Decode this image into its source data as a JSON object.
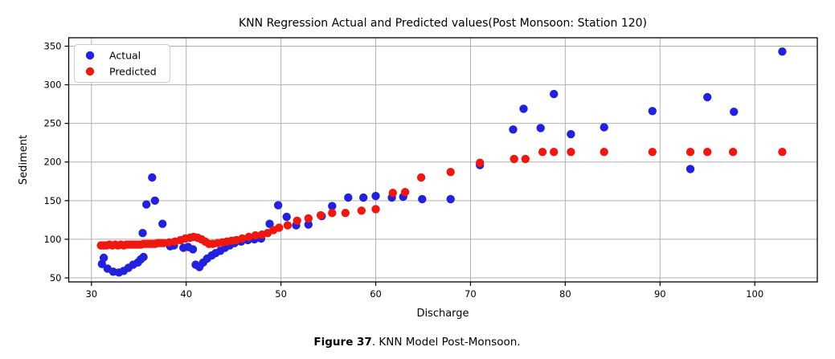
{
  "chart": {
    "title": "KNN Regression Actual and Predicted values(Post Monsoon: Station 120)",
    "xlabel": "Discharge",
    "ylabel": "Sediment"
  },
  "caption": {
    "bold": "Figure 37",
    "rest": ". KNN Model Post-Monsoon."
  },
  "colors": {
    "actual": "#2222dd",
    "predicted": "#ee1810",
    "grid": "#b0b0b0",
    "spine": "#000000",
    "legend_border": "#cccccc",
    "background": "#ffffff"
  },
  "chart_data": {
    "type": "scatter",
    "title": "KNN Regression Actual and Predicted values(Post Monsoon: Station 120)",
    "xlabel": "Discharge",
    "ylabel": "Sediment",
    "grid": true,
    "legend_position": "upper left",
    "xlim": [
      27.6,
      106.6
    ],
    "ylim": [
      44.8,
      360.9
    ],
    "xticks": [
      30,
      40,
      50,
      60,
      70,
      80,
      90,
      100
    ],
    "yticks": [
      50,
      100,
      150,
      200,
      250,
      300,
      350
    ],
    "series": [
      {
        "name": "Actual",
        "color": "#2222dd",
        "points": [
          [
            31.1,
            68
          ],
          [
            31.3,
            76
          ],
          [
            31.7,
            62
          ],
          [
            32.3,
            58
          ],
          [
            32.9,
            57
          ],
          [
            33.4,
            59
          ],
          [
            33.9,
            63
          ],
          [
            34.4,
            67
          ],
          [
            34.9,
            70
          ],
          [
            35.2,
            74
          ],
          [
            35.5,
            77
          ],
          [
            35.4,
            108
          ],
          [
            35.8,
            145
          ],
          [
            36.4,
            180
          ],
          [
            36.7,
            150
          ],
          [
            37.5,
            120
          ],
          [
            38.3,
            91
          ],
          [
            38.7,
            92
          ],
          [
            39.7,
            89
          ],
          [
            40.2,
            90
          ],
          [
            40.7,
            87
          ],
          [
            41.0,
            67
          ],
          [
            41.4,
            64
          ],
          [
            41.8,
            70
          ],
          [
            42.2,
            75
          ],
          [
            42.7,
            79
          ],
          [
            43.1,
            82
          ],
          [
            43.6,
            85
          ],
          [
            44.1,
            89
          ],
          [
            44.6,
            92
          ],
          [
            45.1,
            95
          ],
          [
            45.8,
            97
          ],
          [
            46.5,
            99
          ],
          [
            47.2,
            100
          ],
          [
            47.9,
            101
          ],
          [
            48.8,
            120
          ],
          [
            49.7,
            144
          ],
          [
            50.6,
            129
          ],
          [
            51.6,
            118
          ],
          [
            52.9,
            119
          ],
          [
            54.3,
            130
          ],
          [
            55.4,
            143
          ],
          [
            57.1,
            154
          ],
          [
            58.7,
            154
          ],
          [
            60.0,
            156
          ],
          [
            61.7,
            154
          ],
          [
            62.9,
            155
          ],
          [
            64.9,
            152
          ],
          [
            67.9,
            152
          ],
          [
            71.0,
            196
          ],
          [
            74.5,
            242
          ],
          [
            75.6,
            269
          ],
          [
            77.4,
            244
          ],
          [
            78.8,
            288
          ],
          [
            80.6,
            236
          ],
          [
            84.1,
            245
          ],
          [
            89.2,
            266
          ],
          [
            93.2,
            191
          ],
          [
            95.0,
            284
          ],
          [
            97.8,
            265
          ],
          [
            102.9,
            343
          ]
        ]
      },
      {
        "name": "Predicted",
        "color": "#ee1810",
        "points": [
          [
            31.0,
            92
          ],
          [
            31.3,
            92
          ],
          [
            31.6,
            92
          ],
          [
            31.9,
            93
          ],
          [
            32.2,
            92
          ],
          [
            32.5,
            93
          ],
          [
            32.8,
            92
          ],
          [
            33.1,
            93
          ],
          [
            33.4,
            92
          ],
          [
            33.7,
            93
          ],
          [
            34.0,
            93
          ],
          [
            34.3,
            93
          ],
          [
            34.6,
            93
          ],
          [
            34.9,
            93
          ],
          [
            35.2,
            93
          ],
          [
            35.5,
            94
          ],
          [
            35.8,
            94
          ],
          [
            36.1,
            94
          ],
          [
            36.4,
            94
          ],
          [
            36.7,
            94
          ],
          [
            37.0,
            95
          ],
          [
            37.3,
            95
          ],
          [
            37.6,
            95
          ],
          [
            38.2,
            96
          ],
          [
            38.8,
            97
          ],
          [
            39.4,
            99
          ],
          [
            39.9,
            101
          ],
          [
            40.4,
            102
          ],
          [
            40.8,
            103
          ],
          [
            41.2,
            102
          ],
          [
            41.6,
            100
          ],
          [
            42.0,
            97
          ],
          [
            42.4,
            94
          ],
          [
            42.8,
            94
          ],
          [
            43.3,
            95
          ],
          [
            43.8,
            96
          ],
          [
            44.3,
            97
          ],
          [
            44.8,
            98
          ],
          [
            45.3,
            99
          ],
          [
            45.9,
            101
          ],
          [
            46.6,
            103
          ],
          [
            47.3,
            105
          ],
          [
            48.0,
            106
          ],
          [
            48.6,
            108
          ],
          [
            49.2,
            112
          ],
          [
            49.8,
            115
          ],
          [
            50.7,
            118
          ],
          [
            51.7,
            124
          ],
          [
            52.9,
            127
          ],
          [
            54.2,
            131
          ],
          [
            55.4,
            134
          ],
          [
            56.8,
            134
          ],
          [
            58.5,
            137
          ],
          [
            60.0,
            139
          ],
          [
            61.8,
            160
          ],
          [
            63.1,
            161
          ],
          [
            64.8,
            180
          ],
          [
            67.9,
            187
          ],
          [
            71.0,
            199
          ],
          [
            74.6,
            204
          ],
          [
            75.8,
            204
          ],
          [
            77.6,
            213
          ],
          [
            78.8,
            213
          ],
          [
            80.6,
            213
          ],
          [
            84.1,
            213
          ],
          [
            89.2,
            213
          ],
          [
            93.2,
            213
          ],
          [
            95.0,
            213
          ],
          [
            97.7,
            213
          ],
          [
            102.9,
            213
          ]
        ]
      }
    ]
  }
}
